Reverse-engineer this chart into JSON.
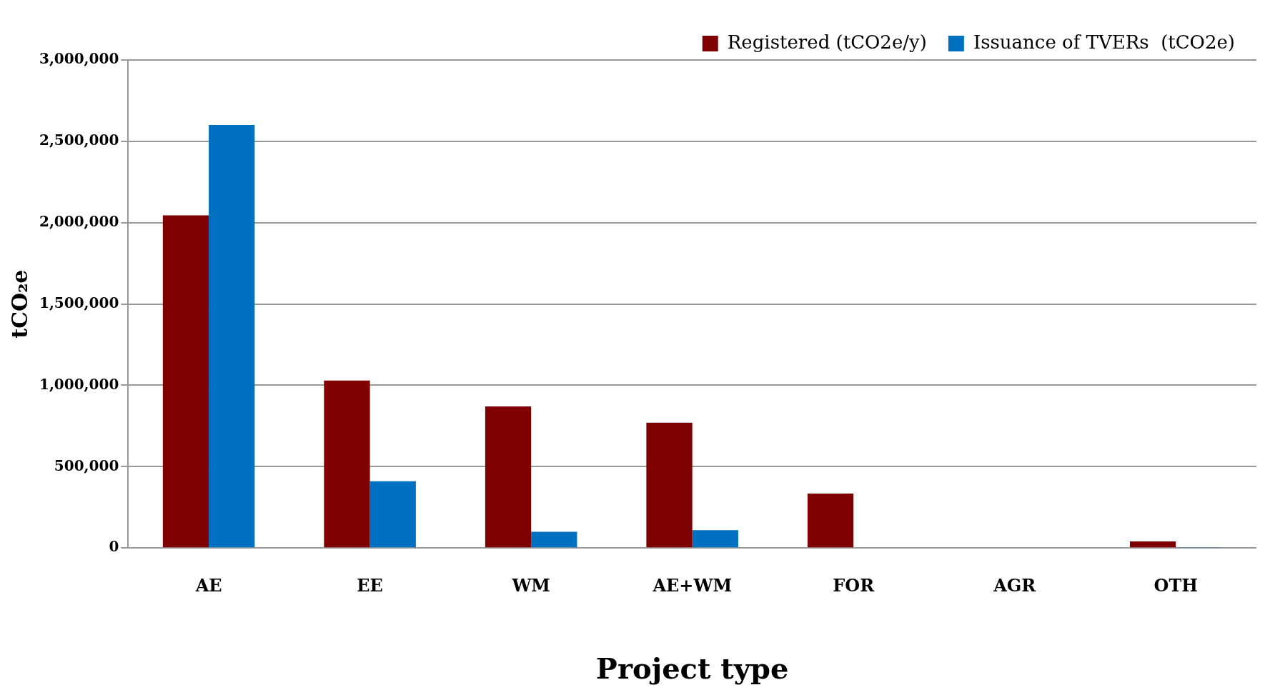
{
  "chart_data": {
    "type": "bar",
    "xlabel": "Project type",
    "ylabel": "tCO₂e",
    "categories": [
      "AE",
      "EE",
      "WM",
      "AE+WM",
      "FOR",
      "AGR",
      "OTH"
    ],
    "series": [
      {
        "name": "Registered (tCO2e/y)",
        "color": "#7f0000",
        "values": [
          2045000,
          1030000,
          870000,
          770000,
          335000,
          0,
          40000
        ]
      },
      {
        "name": "Issuance of TVERs  (tCO2e)",
        "color": "#0070c0",
        "values": [
          2600000,
          410000,
          100000,
          110000,
          0,
          0,
          3000
        ]
      }
    ],
    "ylim": [
      0,
      3000000
    ],
    "yticks": [
      {
        "value": 0,
        "label": "0"
      },
      {
        "value": 500000,
        "label": "500,000"
      },
      {
        "value": 1000000,
        "label": "1,000,000"
      },
      {
        "value": 1500000,
        "label": "1,500,000"
      },
      {
        "value": 2000000,
        "label": "2,000,000"
      },
      {
        "value": 2500000,
        "label": "2,500,000"
      },
      {
        "value": 3000000,
        "label": "3,000,000"
      }
    ],
    "grid": "y",
    "legend": "top right"
  }
}
